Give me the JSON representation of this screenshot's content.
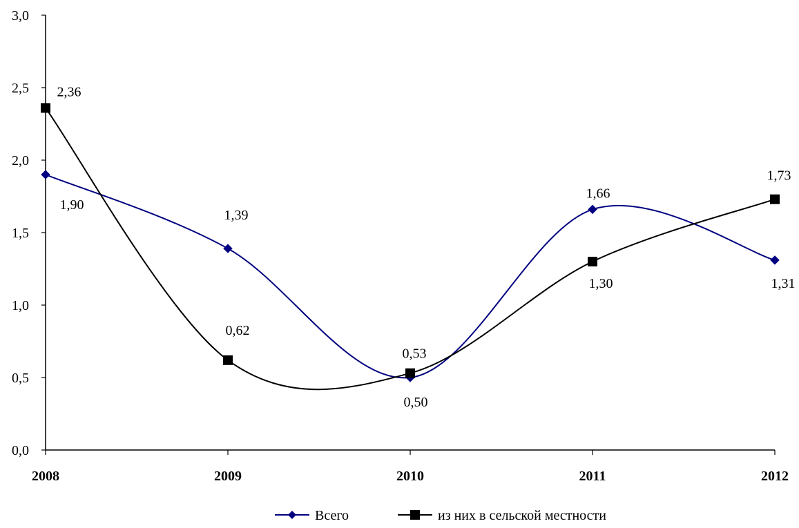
{
  "chart_data": {
    "type": "line",
    "categories": [
      "2008",
      "2009",
      "2010",
      "2011",
      "2012"
    ],
    "ylim": [
      0,
      3.0
    ],
    "yticks": [
      "0,0",
      "0,5",
      "1,0",
      "1,5",
      "2,0",
      "2,5",
      "3,0"
    ],
    "ytick_values": [
      0,
      0.5,
      1.0,
      1.5,
      2.0,
      2.5,
      3.0
    ],
    "grid": false,
    "legend_position": "bottom",
    "series": [
      {
        "name": "Всего",
        "values": [
          1.9,
          1.39,
          0.5,
          1.66,
          1.31
        ],
        "labels": [
          "1,90",
          "1,39",
          "0,50",
          "1,66",
          "1,31"
        ],
        "color": "#000080",
        "marker": "diamond"
      },
      {
        "name": "из них в сельской местности",
        "values": [
          2.36,
          0.62,
          0.53,
          1.3,
          1.73
        ],
        "labels": [
          "2,36",
          "0,62",
          "0,53",
          "1,30",
          "1,73"
        ],
        "color": "#000000",
        "marker": "square"
      }
    ]
  }
}
